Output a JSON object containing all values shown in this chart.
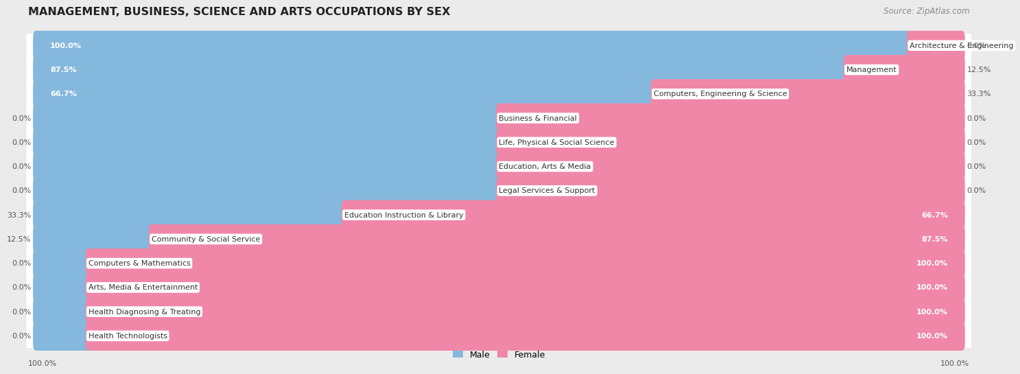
{
  "title": "MANAGEMENT, BUSINESS, SCIENCE AND ARTS OCCUPATIONS BY SEX",
  "source": "Source: ZipAtlas.com",
  "categories": [
    "Architecture & Engineering",
    "Management",
    "Computers, Engineering & Science",
    "Business & Financial",
    "Life, Physical & Social Science",
    "Education, Arts & Media",
    "Legal Services & Support",
    "Education Instruction & Library",
    "Community & Social Service",
    "Computers & Mathematics",
    "Arts, Media & Entertainment",
    "Health Diagnosing & Treating",
    "Health Technologists"
  ],
  "male": [
    100.0,
    87.5,
    66.7,
    0.0,
    0.0,
    0.0,
    0.0,
    33.3,
    12.5,
    0.0,
    0.0,
    0.0,
    0.0
  ],
  "female": [
    0.0,
    12.5,
    33.3,
    0.0,
    0.0,
    0.0,
    0.0,
    66.7,
    87.5,
    100.0,
    100.0,
    100.0,
    100.0
  ],
  "male_color": "#85b8dd",
  "female_color": "#f087a8",
  "male_min_pct": 25.0,
  "bg_color": "#ebebeb",
  "row_bg_color": "#ffffff",
  "title_fontsize": 11.5,
  "source_fontsize": 8.5,
  "label_fontsize": 8,
  "bar_label_fontsize": 8,
  "legend_fontsize": 9
}
